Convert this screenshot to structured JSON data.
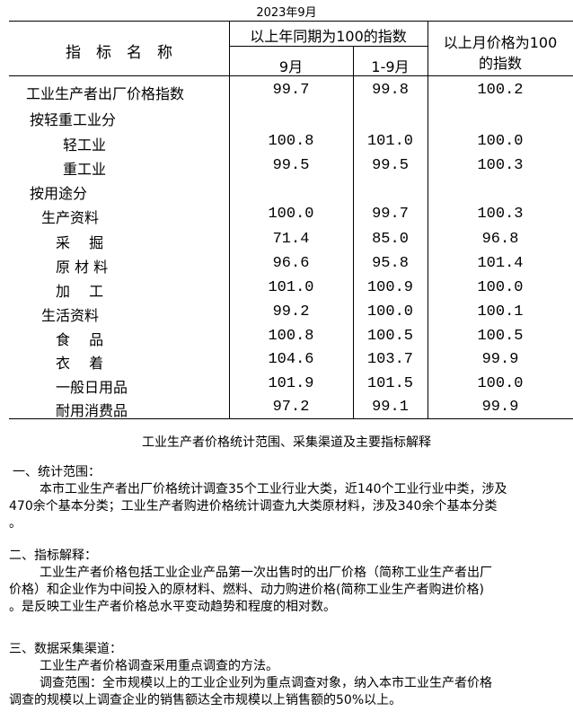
{
  "date": "2023年9月",
  "header": {
    "name": "指　标　名　称",
    "yoy": "以上年同期为100的指数",
    "month": "9月",
    "ytd": "1-9月",
    "mom_line1": "以上月价格为100",
    "mom_line2": "的指数"
  },
  "rows": [
    {
      "label": "工业生产者出厂价格指数",
      "m": "99.7",
      "ytd": "99.8",
      "mom": "100.2"
    },
    {
      "label": "按轻重工业分",
      "m": "",
      "ytd": "",
      "mom": ""
    },
    {
      "label": "轻工业",
      "m": "100.8",
      "ytd": "101.0",
      "mom": "100.0"
    },
    {
      "label": "重工业",
      "m": "99.5",
      "ytd": "99.5",
      "mom": "100.3"
    },
    {
      "label": "按用途分",
      "m": "",
      "ytd": "",
      "mom": ""
    },
    {
      "label": "生产资料",
      "m": "100.0",
      "ytd": "99.7",
      "mom": "100.3"
    },
    {
      "label": "采　 掘",
      "m": "71.4",
      "ytd": "85.0",
      "mom": "96.8"
    },
    {
      "label": "原 材 料",
      "m": "96.6",
      "ytd": "95.8",
      "mom": "101.4"
    },
    {
      "label": "加　 工",
      "m": "101.0",
      "ytd": "100.9",
      "mom": "100.0"
    },
    {
      "label": "生活资料",
      "m": "99.2",
      "ytd": "100.0",
      "mom": "100.1"
    },
    {
      "label": "食　 品",
      "m": "100.8",
      "ytd": "100.5",
      "mom": "100.5"
    },
    {
      "label": "衣　 着",
      "m": "104.6",
      "ytd": "103.7",
      "mom": "99.9"
    },
    {
      "label": "一般日用品",
      "m": "101.9",
      "ytd": "101.5",
      "mom": "100.0"
    },
    {
      "label": "耐用消费品",
      "m": "97.2",
      "ytd": "99.1",
      "mom": "99.9"
    }
  ],
  "notes": {
    "title": "工业生产者价格统计范围、采集渠道及主要指标解释",
    "s1_head": "一、统计范围：",
    "s1_l1": "本市工业生产者出厂价格统计调查35个工业行业大类，近140个工业行业中类，涉及",
    "s1_l2": "470余个基本分类；工业生产者购进价格统计调查九大类原材料，涉及340余个基本分类",
    "s1_l3": "。",
    "s2_head": "二、指标解释：",
    "s2_l1": "工业生产者价格包括工业企业产品第一次出售时的出厂价格（简称工业生产者出厂",
    "s2_l2": "价格）和企业作为中间投入的原材料、燃料、动力购进价格(简称工业生产者购进价格)",
    "s2_l3": "。是反映工业生产者价格总水平变动趋势和程度的相对数。",
    "s3_head": "三、数据采集渠道：",
    "s3_l1": "工业生产者价格调查采用重点调查的方法。",
    "s3_l2": "调查范围：全市规模以上的工业企业列为重点调查对象，纳入本市工业生产者价格",
    "s3_l3": "调查的规模以上调查企业的销售额达全市规模以上销售额的50%以上。"
  }
}
